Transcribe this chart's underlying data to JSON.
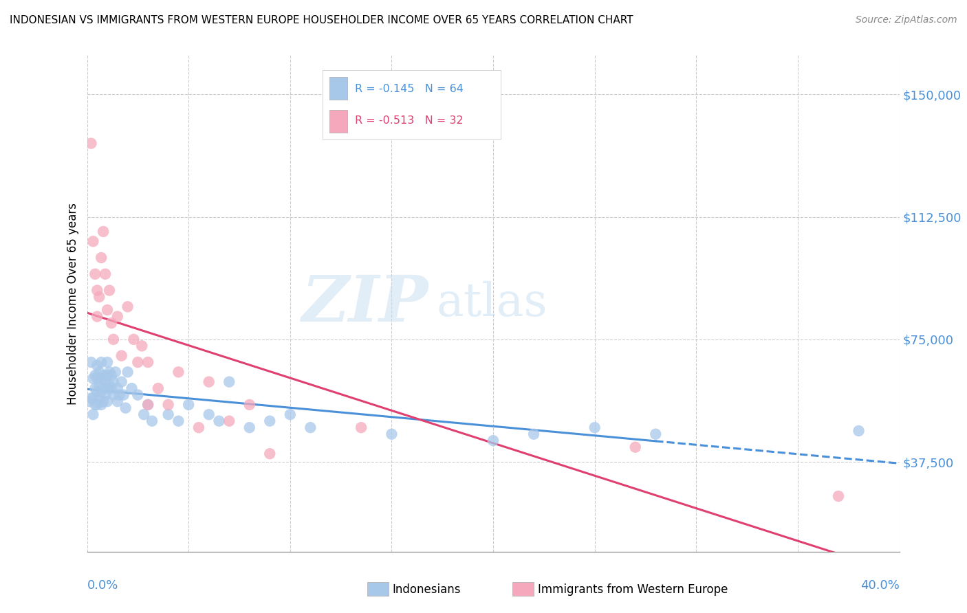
{
  "title": "INDONESIAN VS IMMIGRANTS FROM WESTERN EUROPE HOUSEHOLDER INCOME OVER 65 YEARS CORRELATION CHART",
  "source": "Source: ZipAtlas.com",
  "ylabel": "Householder Income Over 65 years",
  "xmin": 0.0,
  "xmax": 0.4,
  "ymin": 10000,
  "ymax": 162000,
  "yticks": [
    37500,
    75000,
    112500,
    150000
  ],
  "ytick_labels": [
    "$37,500",
    "$75,000",
    "$112,500",
    "$150,000"
  ],
  "watermark_zip": "ZIP",
  "watermark_atlas": "atlas",
  "blue_color": "#a8c8ea",
  "pink_color": "#f5a8bc",
  "blue_line_color": "#4a90d9",
  "pink_line_color": "#e04070",
  "indonesian_x": [
    0.001,
    0.002,
    0.002,
    0.003,
    0.003,
    0.003,
    0.004,
    0.004,
    0.004,
    0.005,
    0.005,
    0.005,
    0.005,
    0.006,
    0.006,
    0.006,
    0.007,
    0.007,
    0.007,
    0.007,
    0.008,
    0.008,
    0.008,
    0.009,
    0.009,
    0.01,
    0.01,
    0.01,
    0.01,
    0.011,
    0.011,
    0.012,
    0.012,
    0.013,
    0.013,
    0.014,
    0.015,
    0.015,
    0.016,
    0.017,
    0.018,
    0.019,
    0.02,
    0.022,
    0.025,
    0.028,
    0.03,
    0.032,
    0.04,
    0.045,
    0.05,
    0.06,
    0.065,
    0.07,
    0.08,
    0.09,
    0.1,
    0.11,
    0.15,
    0.2,
    0.22,
    0.25,
    0.28,
    0.38
  ],
  "indonesian_y": [
    56000,
    68000,
    57000,
    63000,
    57000,
    52000,
    64000,
    60000,
    55000,
    67000,
    63000,
    59000,
    55000,
    65000,
    61000,
    57000,
    68000,
    63000,
    59000,
    55000,
    64000,
    60000,
    56000,
    62000,
    58000,
    68000,
    64000,
    60000,
    56000,
    65000,
    61000,
    64000,
    60000,
    62000,
    58000,
    65000,
    60000,
    56000,
    58000,
    62000,
    58000,
    54000,
    65000,
    60000,
    58000,
    52000,
    55000,
    50000,
    52000,
    50000,
    55000,
    52000,
    50000,
    62000,
    48000,
    50000,
    52000,
    48000,
    46000,
    44000,
    46000,
    48000,
    46000,
    47000
  ],
  "western_x": [
    0.002,
    0.003,
    0.004,
    0.005,
    0.005,
    0.006,
    0.007,
    0.008,
    0.009,
    0.01,
    0.011,
    0.012,
    0.013,
    0.015,
    0.017,
    0.02,
    0.023,
    0.025,
    0.027,
    0.03,
    0.03,
    0.035,
    0.04,
    0.045,
    0.055,
    0.06,
    0.07,
    0.08,
    0.09,
    0.135,
    0.27,
    0.37
  ],
  "western_y": [
    135000,
    105000,
    95000,
    90000,
    82000,
    88000,
    100000,
    108000,
    95000,
    84000,
    90000,
    80000,
    75000,
    82000,
    70000,
    85000,
    75000,
    68000,
    73000,
    68000,
    55000,
    60000,
    55000,
    65000,
    48000,
    62000,
    50000,
    55000,
    40000,
    48000,
    42000,
    27000
  ]
}
